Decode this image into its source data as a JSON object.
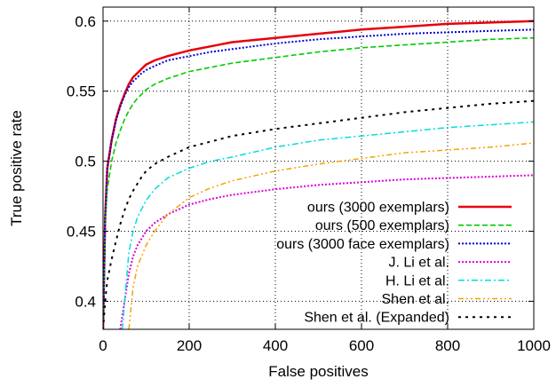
{
  "chart_data": {
    "type": "line",
    "xlabel": "False positives",
    "ylabel": "True positive rate",
    "xlim": [
      0,
      1000
    ],
    "ylim": [
      0.38,
      0.61
    ],
    "xticks": [
      0,
      200,
      400,
      600,
      800,
      1000
    ],
    "xtick_labels": [
      "0",
      "200",
      "400",
      "600",
      "800",
      "1000"
    ],
    "yticks": [
      0.4,
      0.45,
      0.5,
      0.55,
      0.6
    ],
    "ytick_labels": [
      "0.4",
      "0.45",
      "0.5",
      "0.55",
      "0.6"
    ],
    "grid": true,
    "legend_position": "bottom-right",
    "series": [
      {
        "name": "ours (3000 exemplars)",
        "color": "#e8000b",
        "dash": "solid",
        "x": [
          0,
          5,
          10,
          20,
          30,
          40,
          50,
          60,
          70,
          80,
          90,
          100,
          120,
          150,
          200,
          250,
          300,
          400,
          500,
          600,
          700,
          800,
          900,
          1000
        ],
        "y": [
          0.38,
          0.46,
          0.495,
          0.515,
          0.53,
          0.54,
          0.548,
          0.555,
          0.56,
          0.563,
          0.566,
          0.569,
          0.572,
          0.575,
          0.579,
          0.582,
          0.585,
          0.588,
          0.591,
          0.594,
          0.596,
          0.598,
          0.599,
          0.6
        ]
      },
      {
        "name": "ours (500 exemplars)",
        "color": "#00cc00",
        "dash": "dashed",
        "x": [
          0,
          5,
          10,
          20,
          30,
          40,
          50,
          60,
          70,
          80,
          90,
          100,
          120,
          150,
          200,
          250,
          300,
          400,
          500,
          600,
          700,
          800,
          900,
          1000
        ],
        "y": [
          0.38,
          0.455,
          0.48,
          0.5,
          0.513,
          0.522,
          0.53,
          0.536,
          0.541,
          0.545,
          0.548,
          0.551,
          0.555,
          0.559,
          0.564,
          0.567,
          0.57,
          0.574,
          0.578,
          0.581,
          0.583,
          0.585,
          0.587,
          0.588
        ]
      },
      {
        "name": "ours (3000 face exemplars)",
        "color": "#0000dd",
        "dash": "dotted",
        "x": [
          0,
          5,
          10,
          20,
          30,
          40,
          50,
          60,
          70,
          80,
          90,
          100,
          120,
          150,
          200,
          250,
          300,
          400,
          500,
          600,
          700,
          800,
          900,
          1000
        ],
        "y": [
          0.38,
          0.46,
          0.495,
          0.515,
          0.529,
          0.539,
          0.547,
          0.553,
          0.557,
          0.56,
          0.563,
          0.565,
          0.568,
          0.572,
          0.575,
          0.578,
          0.58,
          0.584,
          0.587,
          0.589,
          0.591,
          0.592,
          0.593,
          0.594
        ]
      },
      {
        "name": "J. Li et al.",
        "color": "#dd00dd",
        "dash": "dotted",
        "x": [
          40,
          50,
          60,
          70,
          80,
          100,
          120,
          150,
          200,
          250,
          300,
          400,
          500,
          600,
          700,
          800,
          900,
          1000
        ],
        "y": [
          0.38,
          0.4,
          0.42,
          0.432,
          0.44,
          0.45,
          0.456,
          0.462,
          0.469,
          0.473,
          0.476,
          0.48,
          0.483,
          0.485,
          0.487,
          0.488,
          0.489,
          0.49
        ]
      },
      {
        "name": "H. Li et al.",
        "color": "#00dddd",
        "dash": "dashdot",
        "x": [
          45,
          50,
          60,
          70,
          80,
          100,
          120,
          150,
          200,
          250,
          300,
          400,
          500,
          600,
          700,
          800,
          900,
          1000
        ],
        "y": [
          0.38,
          0.4,
          0.435,
          0.45,
          0.46,
          0.472,
          0.48,
          0.488,
          0.495,
          0.5,
          0.503,
          0.51,
          0.515,
          0.518,
          0.521,
          0.524,
          0.526,
          0.528
        ]
      },
      {
        "name": "Shen et al.",
        "color": "#f5a300",
        "dash": "dashdotdot",
        "x": [
          60,
          70,
          80,
          100,
          120,
          150,
          200,
          250,
          300,
          400,
          500,
          600,
          700,
          800,
          900,
          1000
        ],
        "y": [
          0.38,
          0.41,
          0.425,
          0.44,
          0.45,
          0.462,
          0.474,
          0.481,
          0.486,
          0.493,
          0.498,
          0.502,
          0.506,
          0.508,
          0.51,
          0.513
        ]
      },
      {
        "name": "Shen et al. (Expanded)",
        "color": "#000000",
        "dash": "sparse",
        "x": [
          0,
          5,
          10,
          20,
          30,
          40,
          50,
          60,
          70,
          80,
          90,
          100,
          120,
          150,
          200,
          250,
          300,
          400,
          500,
          600,
          700,
          800,
          900,
          1000
        ],
        "y": [
          0.38,
          0.4,
          0.415,
          0.43,
          0.443,
          0.455,
          0.465,
          0.473,
          0.479,
          0.484,
          0.489,
          0.493,
          0.498,
          0.503,
          0.51,
          0.514,
          0.518,
          0.523,
          0.527,
          0.531,
          0.535,
          0.538,
          0.541,
          0.543
        ]
      }
    ]
  }
}
